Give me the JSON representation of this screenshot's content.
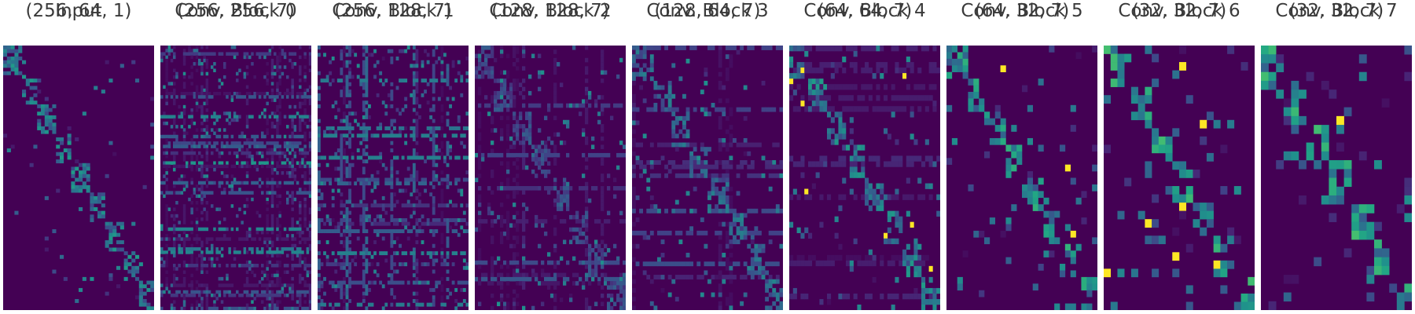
{
  "figure": {
    "panels": [
      {
        "name": "Input",
        "shape": "(256, 64, 1)"
      },
      {
        "name": "Conv. Block 0",
        "shape": "(256, 256, 7)"
      },
      {
        "name": "Conv. Block 1",
        "shape": "(256, 128, 7)"
      },
      {
        "name": "Conv. Block 2",
        "shape": "(128, 128, 7)"
      },
      {
        "name": "Conv. Block 3",
        "shape": "(128, 64, 7)"
      },
      {
        "name": "Conv. Block 4",
        "shape": "(64, 64, 7)"
      },
      {
        "name": "Conv. Block 5",
        "shape": "(64, 32, 7)"
      },
      {
        "name": "Conv. Block 6",
        "shape": "(32, 32, 7)"
      },
      {
        "name": "Conv. Block 7",
        "shape": "(32, 32, 7)"
      }
    ]
  },
  "chart_data": [
    {
      "type": "heatmap",
      "title": "Input",
      "subtitle": "(256, 64, 1)",
      "rows": 72,
      "cols": 40,
      "colormap": "viridis",
      "value_range": [
        0,
        1
      ],
      "pattern": "sparse block-diagonal",
      "diagonal_blocks": 9
    },
    {
      "type": "heatmap",
      "title": "Conv. Block 0",
      "subtitle": "(256, 256, 7)",
      "rows": 80,
      "cols": 60,
      "colormap": "viridis",
      "value_range": [
        0,
        1
      ],
      "pattern": "dense horizontal striping"
    },
    {
      "type": "heatmap",
      "title": "Conv. Block 1",
      "subtitle": "(256, 128, 7)",
      "rows": 72,
      "cols": 54,
      "colormap": "viridis",
      "value_range": [
        0,
        1
      ],
      "pattern": "dense horizontal and vertical striping"
    },
    {
      "type": "heatmap",
      "title": "Conv. Block 2",
      "subtitle": "(128, 128, 7)",
      "rows": 64,
      "cols": 48,
      "colormap": "viridis",
      "value_range": [
        0,
        1
      ],
      "pattern": "striping with emerging blocks",
      "diagonal_blocks": 8
    },
    {
      "type": "heatmap",
      "title": "Conv. Block 3",
      "subtitle": "(128, 64, 7)",
      "rows": 60,
      "cols": 42,
      "colormap": "viridis",
      "value_range": [
        0,
        1
      ],
      "pattern": "blocky with diagonal structure",
      "diagonal_blocks": 8
    },
    {
      "type": "heatmap",
      "title": "Conv. Block 4",
      "subtitle": "(64, 64, 7)",
      "rows": 48,
      "cols": 40,
      "colormap": "viridis",
      "value_range": [
        0,
        1
      ],
      "pattern": "clear block-diagonal",
      "diagonal_blocks": 8
    },
    {
      "type": "heatmap",
      "title": "Conv. Block 5",
      "subtitle": "(64, 32, 7)",
      "rows": 40,
      "cols": 28,
      "colormap": "viridis",
      "value_range": [
        0,
        1
      ],
      "pattern": "clear block-diagonal with bright peaks",
      "diagonal_blocks": 8
    },
    {
      "type": "heatmap",
      "title": "Conv. Block 6",
      "subtitle": "(32, 32, 7)",
      "rows": 32,
      "cols": 22,
      "colormap": "viridis",
      "value_range": [
        0,
        1
      ],
      "pattern": "coarse block-diagonal with bright peaks",
      "diagonal_blocks": 7
    },
    {
      "type": "heatmap",
      "title": "Conv. Block 7",
      "subtitle": "(32, 32, 7)",
      "rows": 30,
      "cols": 20,
      "colormap": "viridis",
      "value_range": [
        0,
        1
      ],
      "pattern": "coarse block-diagonal with bright peaks",
      "diagonal_blocks": 7
    }
  ]
}
